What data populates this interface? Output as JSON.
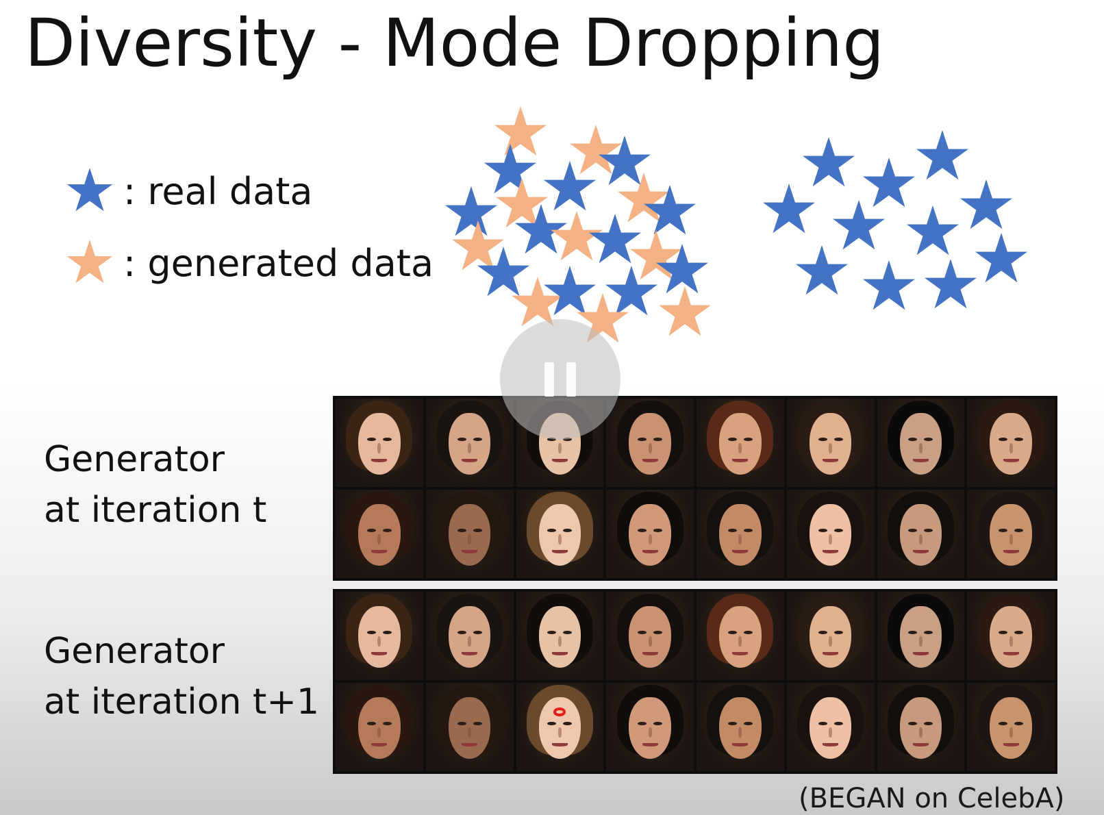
{
  "title": "Diversity - Mode Dropping",
  "legend": {
    "real": {
      "label": ": real data",
      "icon": "star-icon",
      "color": "#4472c4"
    },
    "generated": {
      "label": ": generated data",
      "icon": "star-icon",
      "color": "#f4b183"
    }
  },
  "rows": {
    "top_label_line1": "Generator",
    "top_label_line2": "at iteration t",
    "bottom_label_line1": "Generator",
    "bottom_label_line2": "at iteration t+1"
  },
  "source": "(BEGAN on CelebA)",
  "overlay": {
    "icon": "pause-icon"
  },
  "colors": {
    "real_star": "#4472c4",
    "generated_star": "#f4b183",
    "grid_background": "#0d0d0d",
    "highlight_mark": "#e31c1c"
  }
}
